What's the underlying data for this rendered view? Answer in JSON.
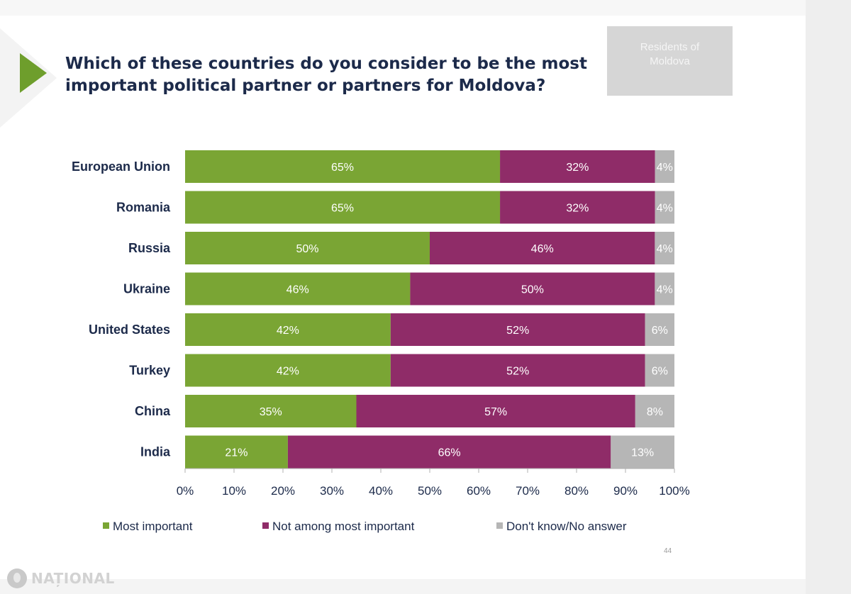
{
  "title": "Which of these countries do you consider to be the most important political partner or partners for Moldova?",
  "badge": "Residents of\nMoldova",
  "page_number": "44",
  "brand": "NAȚIONAL",
  "colors": {
    "most_important": "#7aa534",
    "not_among": "#8f2c68",
    "dont_know": "#b6b6b6",
    "accent_arrow": "#6e9e2c",
    "title": "#1c2a4a"
  },
  "chart_data": {
    "type": "bar",
    "orientation": "horizontal",
    "stacked": true,
    "title": "Which of these countries do you consider to be the most important political partner or partners for Moldova?",
    "categories": [
      "European Union",
      "Romania",
      "Russia",
      "Ukraine",
      "United States",
      "Turkey",
      "China",
      "India"
    ],
    "series": [
      {
        "name": "Most important",
        "values": [
          65,
          65,
          50,
          46,
          42,
          42,
          35,
          21
        ]
      },
      {
        "name": "Not among most important",
        "values": [
          32,
          32,
          46,
          50,
          52,
          52,
          57,
          66
        ]
      },
      {
        "name": "Don't know/No answer",
        "values": [
          4,
          4,
          4,
          4,
          6,
          6,
          8,
          13
        ]
      }
    ],
    "xticks": [
      "0%",
      "10%",
      "20%",
      "30%",
      "40%",
      "50%",
      "60%",
      "70%",
      "80%",
      "90%",
      "100%"
    ],
    "xlim": [
      0,
      100
    ],
    "value_suffix": "%",
    "legend_position": "bottom",
    "grid": false
  }
}
